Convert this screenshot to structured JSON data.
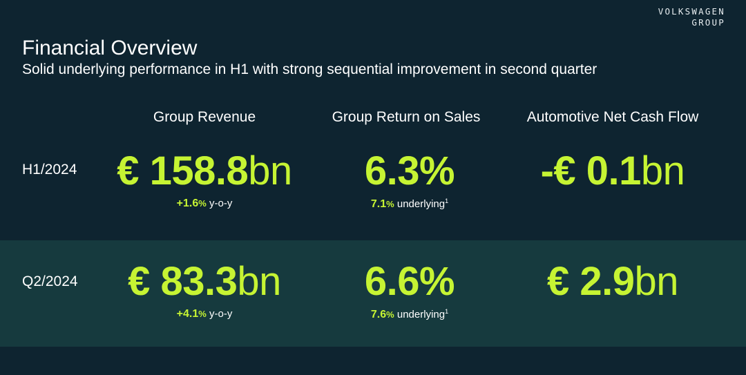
{
  "brand": {
    "line1": "VOLKSWAGEN",
    "line2": "GROUP"
  },
  "header": {
    "title": "Financial Overview",
    "subtitle": "Solid underlying performance in H1 with strong sequential improvement in second quarter"
  },
  "columns": [
    "Group Revenue",
    "Group Return on Sales",
    "Automotive Net Cash Flow"
  ],
  "colors": {
    "background": "#0e2430",
    "band": "#163a3e",
    "accent": "#c6f433"
  },
  "rows": [
    {
      "label": "H1/2024",
      "revenue": {
        "prefix": "€ ",
        "value": "158.8",
        "unit": "bn",
        "change": "+1.6",
        "change_pct": "%",
        "change_desc": " y-o-y"
      },
      "ros": {
        "value": "6.3%",
        "underlying": "7.1",
        "underlying_pct": "%",
        "underlying_desc": " underlying",
        "footnote": "1"
      },
      "cashflow": {
        "prefix": "-€ ",
        "value": "0.1",
        "unit": "bn"
      }
    },
    {
      "label": "Q2/2024",
      "revenue": {
        "prefix": "€ ",
        "value": "83.3",
        "unit": "bn",
        "change": "+4.1",
        "change_pct": "%",
        "change_desc": " y-o-y"
      },
      "ros": {
        "value": "6.6%",
        "underlying": "7.6",
        "underlying_pct": "%",
        "underlying_desc": " underlying",
        "footnote": "1"
      },
      "cashflow": {
        "prefix": "€ ",
        "value": "2.9",
        "unit": "bn"
      }
    }
  ]
}
